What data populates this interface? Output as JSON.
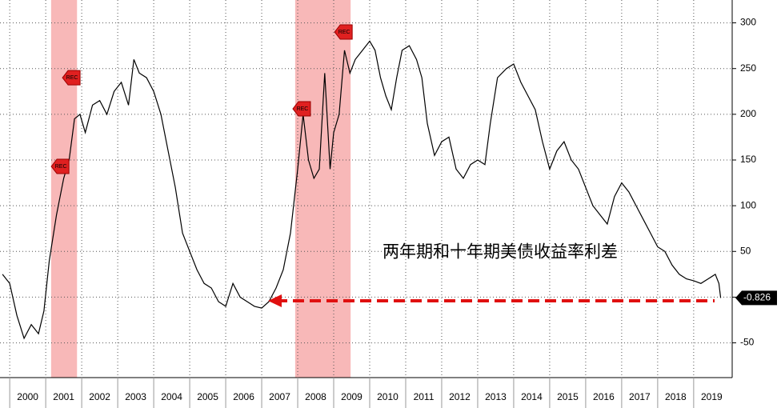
{
  "chart_data": {
    "type": "line",
    "annotation": "两年期和十年期美债收益率利差",
    "last_value": -0.826,
    "color": "#000000",
    "recessions": [
      [
        2001.15,
        2001.87
      ],
      [
        2007.93,
        2009.47
      ]
    ],
    "rec_markers": [
      {
        "text": "REC",
        "x": 2001.4,
        "y": 143
      },
      {
        "text": "REC",
        "x": 2001.71,
        "y": 240
      },
      {
        "text": "REC",
        "x": 2008.11,
        "y": 206
      },
      {
        "text": "REC",
        "x": 2009.27,
        "y": 290
      }
    ],
    "xlim": [
      1999.73,
      2020.07
    ],
    "xticks": [
      2000,
      2001,
      2002,
      2003,
      2004,
      2005,
      2006,
      2007,
      2008,
      2009,
      2010,
      2011,
      2012,
      2013,
      2014,
      2015,
      2016,
      2017,
      2018,
      2019
    ],
    "ylim": [
      -88,
      325
    ],
    "yticks": [
      -50,
      0,
      50,
      100,
      150,
      200,
      250,
      300
    ],
    "grid": true,
    "x": [
      1999.8,
      2000.0,
      2000.2,
      2000.4,
      2000.6,
      2000.8,
      2000.95,
      2001.1,
      2001.3,
      2001.5,
      2001.65,
      2001.8,
      2001.95,
      2002.1,
      2002.3,
      2002.5,
      2002.7,
      2002.9,
      2003.1,
      2003.3,
      2003.45,
      2003.6,
      2003.8,
      2004.0,
      2004.2,
      2004.4,
      2004.6,
      2004.8,
      2005.0,
      2005.2,
      2005.4,
      2005.6,
      2005.8,
      2006.0,
      2006.2,
      2006.4,
      2006.6,
      2006.8,
      2007.0,
      2007.2,
      2007.4,
      2007.6,
      2007.8,
      2008.0,
      2008.15,
      2008.3,
      2008.45,
      2008.6,
      2008.75,
      2008.9,
      2009.0,
      2009.15,
      2009.3,
      2009.45,
      2009.6,
      2009.8,
      2010.0,
      2010.15,
      2010.3,
      2010.45,
      2010.6,
      2010.75,
      2010.9,
      2011.1,
      2011.3,
      2011.45,
      2011.6,
      2011.8,
      2012.0,
      2012.2,
      2012.4,
      2012.6,
      2012.8,
      2013.0,
      2013.2,
      2013.35,
      2013.55,
      2013.8,
      2014.0,
      2014.2,
      2014.4,
      2014.6,
      2014.8,
      2015.0,
      2015.2,
      2015.4,
      2015.6,
      2015.8,
      2016.0,
      2016.2,
      2016.4,
      2016.6,
      2016.8,
      2017.0,
      2017.2,
      2017.4,
      2017.6,
      2017.8,
      2018.0,
      2018.2,
      2018.4,
      2018.6,
      2018.8,
      2019.0,
      2019.2,
      2019.4,
      2019.6,
      2019.7,
      2019.75
    ],
    "values": [
      25,
      15,
      -20,
      -45,
      -30,
      -40,
      -15,
      40,
      90,
      130,
      150,
      195,
      200,
      180,
      210,
      215,
      200,
      225,
      235,
      210,
      260,
      245,
      240,
      225,
      200,
      160,
      120,
      70,
      50,
      30,
      15,
      10,
      -5,
      -10,
      15,
      0,
      -5,
      -10,
      -12,
      -5,
      10,
      30,
      70,
      140,
      200,
      150,
      130,
      140,
      245,
      140,
      180,
      200,
      270,
      245,
      260,
      270,
      280,
      270,
      240,
      220,
      205,
      240,
      270,
      275,
      260,
      240,
      190,
      155,
      170,
      175,
      140,
      130,
      145,
      150,
      145,
      190,
      240,
      250,
      255,
      235,
      220,
      205,
      170,
      140,
      160,
      170,
      150,
      140,
      120,
      100,
      90,
      80,
      110,
      125,
      115,
      100,
      85,
      70,
      55,
      50,
      35,
      25,
      20,
      18,
      15,
      20,
      25,
      15,
      -0.826
    ]
  }
}
